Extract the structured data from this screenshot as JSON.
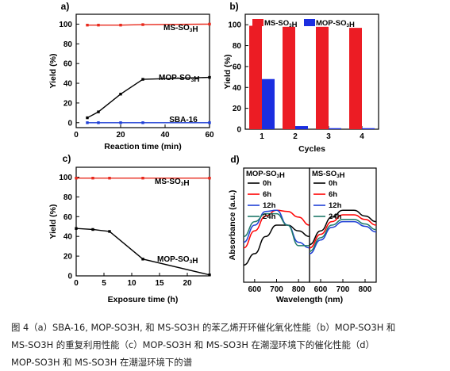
{
  "caption": {
    "line1": "图 4（a）SBA-16, MOP-SO3H, 和  MS-SO3H 的苯乙烯开环催化氧化性能（b）MOP-SO3H 和",
    "line2": "MS-SO3H 的重复利用性能（c）MOP-SO3H 和  MS-SO3H 在潮湿环境下的催化性能（d）",
    "line3": "MOP-SO3H 和  MS-SO3H 在潮湿环境下的谱"
  },
  "chart_data": [
    {
      "panel": "a)",
      "type": "line",
      "xlabel": "Reaction time (min)",
      "ylabel": "Yield (%)",
      "xlim": [
        0,
        60
      ],
      "ylim": [
        -5,
        110
      ],
      "xticks": [
        0,
        20,
        40,
        60
      ],
      "yticks": [
        0,
        20,
        40,
        60,
        80,
        100
      ],
      "series": [
        {
          "name": "MS-SO3H",
          "color": "#e8291c",
          "x": [
            5,
            10,
            20,
            30,
            60
          ],
          "y": [
            99,
            99,
            99,
            99.5,
            100
          ]
        },
        {
          "name": "MOP-SO3H",
          "color": "#000000",
          "x": [
            5,
            10,
            20,
            30,
            60
          ],
          "y": [
            5,
            11,
            29,
            44,
            46
          ]
        },
        {
          "name": "SBA-16",
          "color": "#1f3fd6",
          "x": [
            5,
            10,
            20,
            30,
            60
          ],
          "y": [
            0,
            0,
            0,
            0,
            0
          ]
        }
      ]
    },
    {
      "panel": "b)",
      "type": "bar",
      "xlabel": "Cycles",
      "ylabel": "Yield (%)",
      "categories": [
        "1",
        "2",
        "3",
        "4"
      ],
      "ylim": [
        0,
        110
      ],
      "yticks": [
        0,
        20,
        40,
        60,
        80,
        100
      ],
      "legend": "top",
      "series": [
        {
          "name": "MS-SO3H",
          "color": "#ec1c24",
          "values": [
            99,
            98,
            98,
            97
          ]
        },
        {
          "name": "MOP-SO3H",
          "color": "#1b2ee0",
          "values": [
            48,
            3,
            1,
            1
          ]
        }
      ]
    },
    {
      "panel": "c)",
      "type": "line",
      "xlabel": "Exposure time (h)",
      "ylabel": "Yield (%)",
      "xlim": [
        0,
        24
      ],
      "ylim": [
        0,
        110
      ],
      "xticks": [
        0,
        5,
        10,
        15,
        20
      ],
      "yticks": [
        0,
        20,
        40,
        60,
        80,
        100
      ],
      "series": [
        {
          "name": "MS-SO3H",
          "color": "#e8291c",
          "x": [
            0,
            3,
            6,
            12,
            24
          ],
          "y": [
            99,
            99,
            99,
            99,
            99
          ]
        },
        {
          "name": "MOP-SO3H",
          "color": "#000000",
          "x": [
            0,
            3,
            6,
            12,
            24
          ],
          "y": [
            48,
            47,
            45,
            17,
            1
          ]
        }
      ]
    },
    {
      "panel": "d)",
      "type": "line",
      "xlabel": "Wavelength (nm)",
      "ylabel": "Absorbance (a.u.)",
      "subpanels": [
        {
          "title": "MOP-SO3H",
          "xlim": [
            550,
            850
          ],
          "xticks": [
            600,
            700,
            800
          ],
          "ylim": [
            0,
            1
          ],
          "series": [
            {
              "name": "0h",
              "color": "#000000",
              "x": [
                550,
                600,
                650,
                700,
                750,
                800,
                850
              ],
              "y": [
                0.15,
                0.25,
                0.4,
                0.5,
                0.5,
                0.45,
                0.4
              ]
            },
            {
              "name": "6h",
              "color": "#ff0000",
              "x": [
                550,
                600,
                650,
                700,
                750,
                800,
                850
              ],
              "y": [
                0.3,
                0.45,
                0.58,
                0.63,
                0.62,
                0.57,
                0.5
              ]
            },
            {
              "name": "12h",
              "color": "#1f3fd6",
              "x": [
                550,
                600,
                650,
                700,
                750,
                800,
                850
              ],
              "y": [
                0.35,
                0.5,
                0.62,
                0.63,
                0.5,
                0.35,
                0.3
              ]
            },
            {
              "name": "24h",
              "color": "#1f7a6a",
              "x": [
                550,
                600,
                650,
                700,
                750,
                800,
                850
              ],
              "y": [
                0.4,
                0.53,
                0.6,
                0.6,
                0.5,
                0.32,
                0.32
              ]
            }
          ]
        },
        {
          "title": "MS-SO3H",
          "xlim": [
            550,
            850
          ],
          "xticks": [
            600,
            700,
            800
          ],
          "ylim": [
            0,
            1
          ],
          "series": [
            {
              "name": "0h",
              "color": "#000000",
              "x": [
                550,
                600,
                650,
                700,
                750,
                800,
                850
              ],
              "y": [
                0.33,
                0.45,
                0.57,
                0.63,
                0.63,
                0.58,
                0.53
              ]
            },
            {
              "name": "6h",
              "color": "#ff0000",
              "x": [
                550,
                600,
                650,
                700,
                750,
                800,
                850
              ],
              "y": [
                0.3,
                0.42,
                0.53,
                0.59,
                0.59,
                0.55,
                0.5
              ]
            },
            {
              "name": "12h",
              "color": "#1f3fd6",
              "x": [
                550,
                600,
                650,
                700,
                750,
                800,
                850
              ],
              "y": [
                0.25,
                0.37,
                0.48,
                0.53,
                0.53,
                0.49,
                0.44
              ]
            },
            {
              "name": "24h",
              "color": "#1f7a6a",
              "x": [
                550,
                600,
                650,
                700,
                750,
                800,
                850
              ],
              "y": [
                0.27,
                0.39,
                0.5,
                0.55,
                0.55,
                0.51,
                0.46
              ]
            }
          ]
        }
      ]
    }
  ]
}
